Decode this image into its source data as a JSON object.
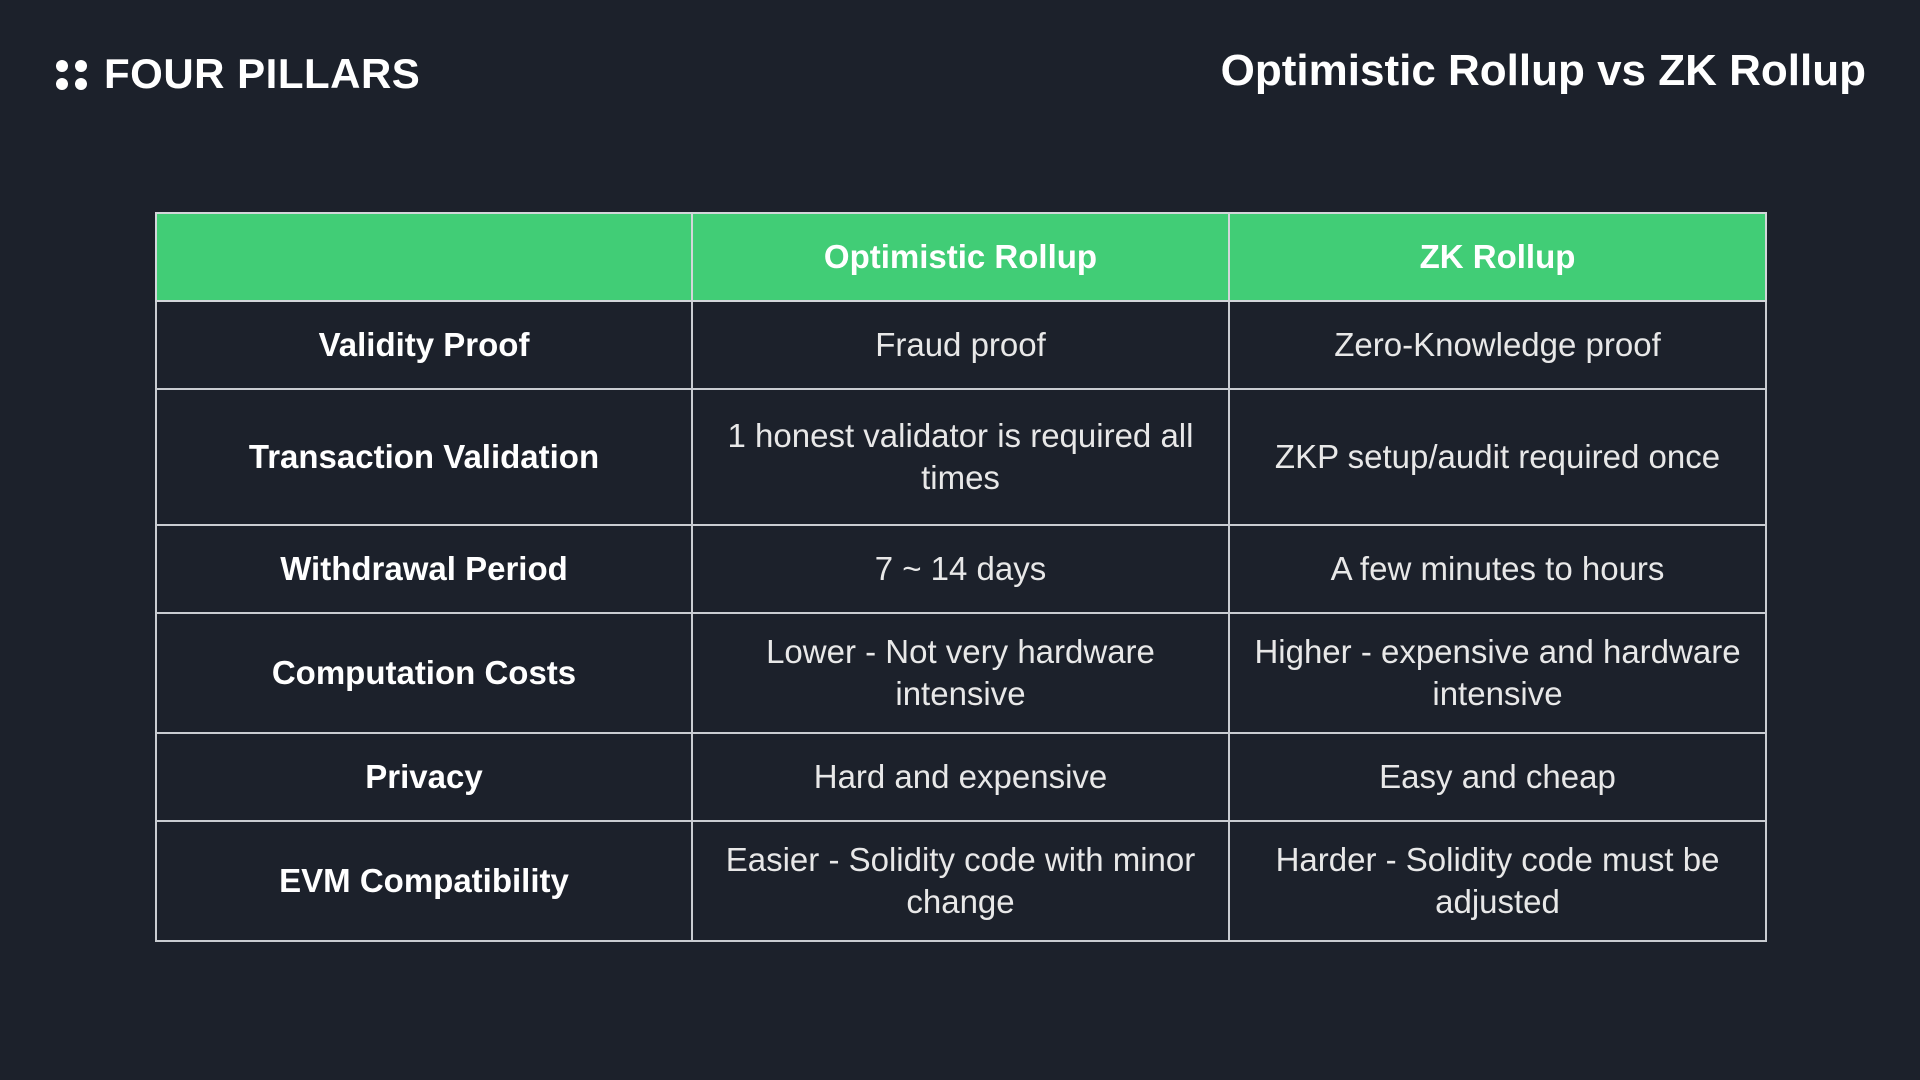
{
  "header": {
    "brand_icon": "four-dots-icon",
    "brand_name": "FOUR PILLARS",
    "title": "Optimistic Rollup vs ZK Rollup"
  },
  "table": {
    "columns": [
      "",
      "Optimistic Rollup",
      "ZK Rollup"
    ],
    "rows": [
      {
        "label": "Validity Proof",
        "optimistic": "Fraud proof",
        "zk": "Zero-Knowledge proof"
      },
      {
        "label": "Transaction Validation",
        "optimistic": "1 honest validator is required all times",
        "zk": "ZKP setup/audit required once"
      },
      {
        "label": "Withdrawal Period",
        "optimistic": "7 ~ 14 days",
        "zk": "A few minutes to hours"
      },
      {
        "label": "Computation Costs",
        "optimistic": "Lower - Not very hardware intensive",
        "zk": "Higher - expensive and hardware intensive"
      },
      {
        "label": "Privacy",
        "optimistic": "Hard and expensive",
        "zk": "Easy and cheap"
      },
      {
        "label": "EVM Compatibility",
        "optimistic": "Easier - Solidity code with minor change",
        "zk": "Harder - Solidity code must be adjusted"
      }
    ]
  },
  "colors": {
    "background": "#1c212b",
    "header_row": "#41cd76",
    "border": "#c9ccd1",
    "text": "#ffffff"
  }
}
